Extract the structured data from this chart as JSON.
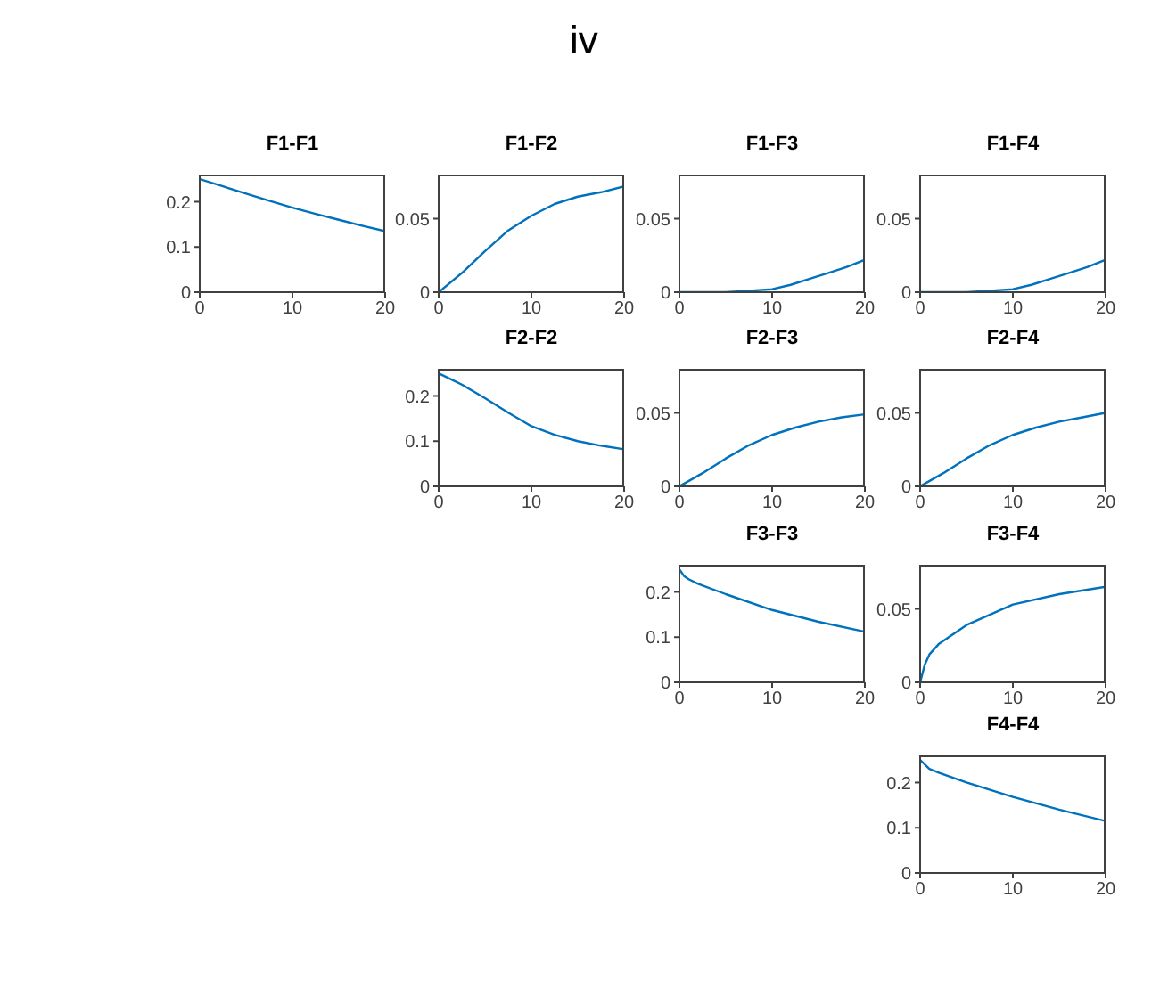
{
  "chart_data": [
    {
      "type": "line",
      "title": "F1-F1",
      "annotations": [
        "iv"
      ],
      "x": [
        0,
        2.5,
        5,
        7.5,
        10,
        12.5,
        15,
        17.5,
        20
      ],
      "xlim": [
        0,
        20
      ],
      "xticks": [
        0,
        10,
        20
      ],
      "ylim": [
        0,
        0.26
      ],
      "yticks": [
        0,
        0.1,
        0.2
      ],
      "marker": "none",
      "grid": false,
      "legend": false,
      "series": [
        {
          "color": "#0072bd",
          "values": [
            0.25,
            0.234,
            0.218,
            0.202,
            0.187,
            0.173,
            0.16,
            0.147,
            0.135
          ]
        }
      ]
    },
    {
      "type": "line",
      "title": "F1-F2",
      "x": [
        0,
        2.5,
        5,
        7.5,
        10,
        12.5,
        15,
        17.5,
        20
      ],
      "xlim": [
        0,
        20
      ],
      "xticks": [
        0,
        10,
        20
      ],
      "ylim": [
        0,
        0.08
      ],
      "yticks": [
        0,
        0.05
      ],
      "marker": "none",
      "grid": false,
      "legend": false,
      "series": [
        {
          "color": "#0072bd",
          "values": [
            0,
            0.013,
            0.028,
            0.042,
            0.052,
            0.06,
            0.065,
            0.068,
            0.072
          ]
        }
      ]
    },
    {
      "type": "line",
      "title": "F1-F3",
      "x": [
        0,
        2.5,
        5,
        7.5,
        10,
        12,
        14,
        16,
        18,
        20
      ],
      "xlim": [
        0,
        20
      ],
      "xticks": [
        0,
        10,
        20
      ],
      "ylim": [
        0,
        0.08
      ],
      "yticks": [
        0,
        0.05
      ],
      "marker": "none",
      "grid": false,
      "legend": false,
      "series": [
        {
          "color": "#0072bd",
          "values": [
            0,
            0,
            0,
            0.001,
            0.002,
            0.005,
            0.009,
            0.013,
            0.017,
            0.022
          ]
        }
      ]
    },
    {
      "type": "line",
      "title": "F1-F4",
      "x": [
        0,
        2.5,
        5,
        7.5,
        10,
        12,
        14,
        16,
        18,
        20
      ],
      "xlim": [
        0,
        20
      ],
      "xticks": [
        0,
        10,
        20
      ],
      "ylim": [
        0,
        0.08
      ],
      "yticks": [
        0,
        0.05
      ],
      "marker": "none",
      "grid": false,
      "legend": false,
      "series": [
        {
          "color": "#0072bd",
          "values": [
            0,
            0,
            0,
            0.001,
            0.002,
            0.005,
            0.009,
            0.013,
            0.017,
            0.022
          ]
        }
      ]
    },
    {
      "type": "line",
      "title": "F2-F2",
      "x": [
        0,
        2.5,
        5,
        7.5,
        10,
        12.5,
        15,
        17.5,
        20
      ],
      "xlim": [
        0,
        20
      ],
      "xticks": [
        0,
        10,
        20
      ],
      "ylim": [
        0,
        0.26
      ],
      "yticks": [
        0,
        0.1,
        0.2
      ],
      "marker": "none",
      "grid": false,
      "legend": false,
      "series": [
        {
          "color": "#0072bd",
          "values": [
            0.25,
            0.225,
            0.195,
            0.163,
            0.133,
            0.114,
            0.1,
            0.09,
            0.082
          ]
        }
      ]
    },
    {
      "type": "line",
      "title": "F2-F3",
      "x": [
        0,
        2.5,
        5,
        7.5,
        10,
        12.5,
        15,
        17.5,
        20
      ],
      "xlim": [
        0,
        20
      ],
      "xticks": [
        0,
        10,
        20
      ],
      "ylim": [
        0,
        0.08
      ],
      "yticks": [
        0,
        0.05
      ],
      "marker": "none",
      "grid": false,
      "legend": false,
      "series": [
        {
          "color": "#0072bd",
          "values": [
            0,
            0.009,
            0.019,
            0.028,
            0.035,
            0.04,
            0.044,
            0.047,
            0.049
          ]
        }
      ]
    },
    {
      "type": "line",
      "title": "F2-F4",
      "x": [
        0,
        2.5,
        5,
        7.5,
        10,
        12.5,
        15,
        17.5,
        20
      ],
      "xlim": [
        0,
        20
      ],
      "xticks": [
        0,
        10,
        20
      ],
      "ylim": [
        0,
        0.08
      ],
      "yticks": [
        0,
        0.05
      ],
      "marker": "none",
      "grid": false,
      "legend": false,
      "series": [
        {
          "color": "#0072bd",
          "values": [
            0,
            0.009,
            0.019,
            0.028,
            0.035,
            0.04,
            0.044,
            0.047,
            0.05
          ]
        }
      ]
    },
    {
      "type": "line",
      "title": "F3-F3",
      "x": [
        0,
        0.5,
        1,
        2,
        5,
        10,
        15,
        20
      ],
      "xlim": [
        0,
        20
      ],
      "xticks": [
        0,
        10,
        20
      ],
      "ylim": [
        0,
        0.26
      ],
      "yticks": [
        0,
        0.1,
        0.2
      ],
      "marker": "none",
      "grid": false,
      "legend": false,
      "series": [
        {
          "color": "#0072bd",
          "values": [
            0.25,
            0.235,
            0.228,
            0.218,
            0.195,
            0.16,
            0.134,
            0.112
          ]
        }
      ]
    },
    {
      "type": "line",
      "title": "F3-F4",
      "x": [
        0,
        0.5,
        1,
        2,
        5,
        10,
        15,
        20
      ],
      "xlim": [
        0,
        20
      ],
      "xticks": [
        0,
        10,
        20
      ],
      "ylim": [
        0,
        0.08
      ],
      "yticks": [
        0,
        0.05
      ],
      "marker": "none",
      "grid": false,
      "legend": false,
      "series": [
        {
          "color": "#0072bd",
          "values": [
            0,
            0.012,
            0.019,
            0.026,
            0.039,
            0.053,
            0.06,
            0.065
          ]
        }
      ]
    },
    {
      "type": "line",
      "title": "F4-F4",
      "x": [
        0,
        0.5,
        1,
        2,
        5,
        10,
        15,
        20
      ],
      "xlim": [
        0,
        20
      ],
      "xticks": [
        0,
        10,
        20
      ],
      "ylim": [
        0,
        0.26
      ],
      "yticks": [
        0,
        0.1,
        0.2
      ],
      "marker": "none",
      "grid": false,
      "legend": false,
      "series": [
        {
          "color": "#0072bd",
          "values": [
            0.25,
            0.24,
            0.23,
            0.222,
            0.2,
            0.168,
            0.14,
            0.115
          ]
        }
      ]
    }
  ]
}
